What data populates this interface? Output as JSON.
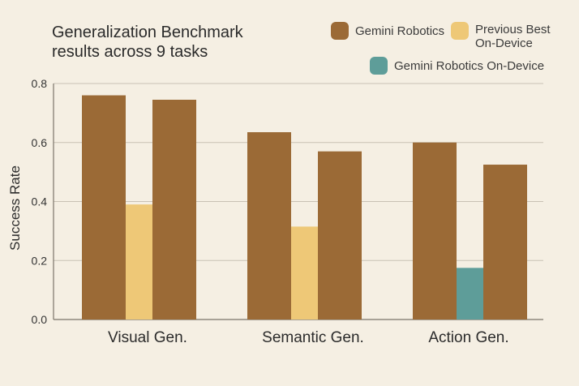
{
  "title_lines": [
    "Generalization Benchmark",
    "results across 9 tasks"
  ],
  "colors": {
    "gemini": "#9b6a36",
    "previous": "#eec877",
    "ondevice": "#5e9d99",
    "grid": "#c9c2b4",
    "axis": "#7b746a",
    "bg": "#f5efe3"
  },
  "legend": [
    {
      "key": "gemini",
      "label_lines": [
        "Gemini Robotics"
      ],
      "icon": "square-swatch"
    },
    {
      "key": "previous",
      "label_lines": [
        "Previous Best",
        "On-Device"
      ],
      "icon": "square-swatch"
    },
    {
      "key": "ondevice",
      "label_lines": [
        "Gemini Robotics On-Device"
      ],
      "icon": "square-swatch"
    }
  ],
  "chart_data": {
    "type": "bar",
    "title": "Generalization Benchmark results across 9 tasks",
    "ylabel": "Success Rate",
    "xlabel": "",
    "ylim": [
      0,
      0.8
    ],
    "yticks": [
      0.0,
      0.2,
      0.4,
      0.6,
      0.8
    ],
    "ytick_labels": [
      "0.0",
      "0.2",
      "0.4",
      "0.6",
      "0.8"
    ],
    "grid": true,
    "legend_position": "top-right",
    "categories": [
      "Visual Gen.",
      "Semantic Gen.",
      "Action Gen."
    ],
    "bars": [
      {
        "category": "Visual Gen.",
        "series": "gemini",
        "value": 0.76
      },
      {
        "category": "Visual Gen.",
        "series": "previous",
        "value": 0.39
      },
      {
        "category": "Visual Gen.",
        "series": "gemini",
        "value": 0.745
      },
      {
        "category": "Semantic Gen.",
        "series": "gemini",
        "value": 0.635
      },
      {
        "category": "Semantic Gen.",
        "series": "previous",
        "value": 0.315
      },
      {
        "category": "Semantic Gen.",
        "series": "gemini",
        "value": 0.57
      },
      {
        "category": "Action Gen.",
        "series": "gemini",
        "value": 0.6
      },
      {
        "category": "Action Gen.",
        "series": "ondevice",
        "value": 0.175
      },
      {
        "category": "Action Gen.",
        "series": "gemini",
        "value": 0.525
      }
    ]
  }
}
